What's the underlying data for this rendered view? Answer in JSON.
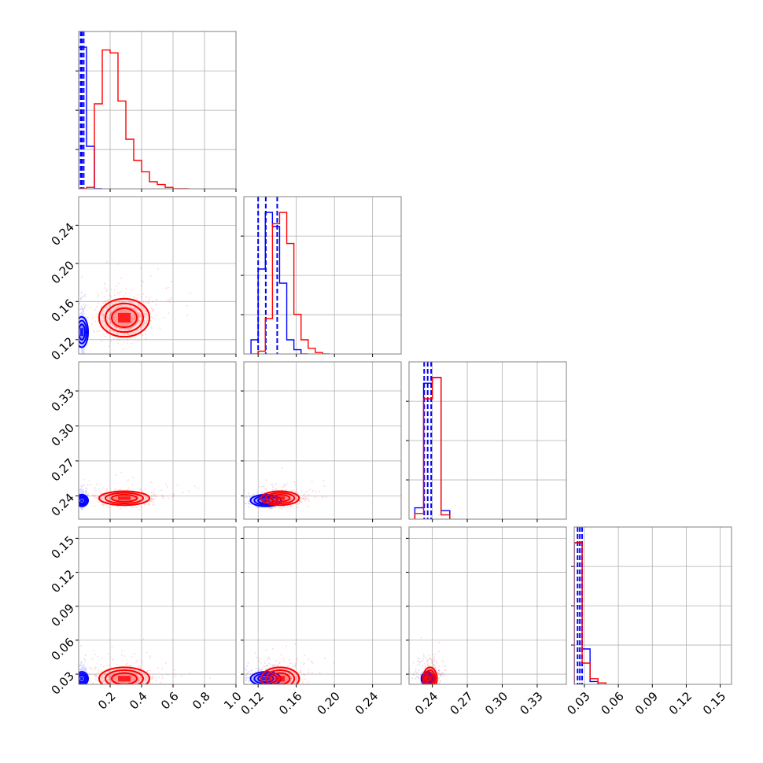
{
  "chart_data": {
    "type": "scatter",
    "title": "",
    "style": "corner plot (pairwise marginal histograms and 2D scatter/contours)",
    "grid": true,
    "legend": "none",
    "colors": {
      "series_a": "#0000ff",
      "series_b": "#ff0000"
    },
    "parameters": [
      {
        "index": 0,
        "label": "",
        "range": [
          0.0,
          1.0
        ],
        "ticks": [
          0.2,
          0.4,
          0.6,
          0.8,
          1.0
        ],
        "tick_labels": [
          "0.2",
          "0.4",
          "0.6",
          "0.8",
          "1.0"
        ]
      },
      {
        "index": 1,
        "label": "",
        "range": [
          0.105,
          0.27
        ],
        "ticks": [
          0.12,
          0.16,
          0.2,
          0.24
        ],
        "tick_labels": [
          "0.12",
          "0.16",
          "0.20",
          "0.24"
        ]
      },
      {
        "index": 2,
        "label": "",
        "range": [
          0.22,
          0.355
        ],
        "ticks": [
          0.24,
          0.27,
          0.3,
          0.33
        ],
        "tick_labels": [
          "0.24",
          "0.27",
          "0.30",
          "0.33"
        ]
      },
      {
        "index": 3,
        "label": "",
        "range": [
          0.021,
          0.16
        ],
        "ticks": [
          0.03,
          0.06,
          0.09,
          0.12,
          0.15
        ],
        "tick_labels": [
          "0.03",
          "0.06",
          "0.09",
          "0.12",
          "0.15"
        ]
      }
    ],
    "series": [
      {
        "color": "#0000ff",
        "means": [
          0.02,
          0.128,
          0.236,
          0.026
        ],
        "sds": [
          0.006,
          0.008,
          0.0025,
          0.003
        ],
        "quantiles": [
          [
            0.013,
            0.02,
            0.032
          ],
          [
            0.12,
            0.128,
            0.14
          ],
          [
            0.233,
            0.236,
            0.239
          ],
          [
            0.024,
            0.026,
            0.028
          ]
        ],
        "histograms": [
          {
            "edges": [
              0.0,
              0.05,
              0.1,
              0.15
            ],
            "counts": [
              1.0,
              0.3,
              0.0
            ]
          },
          {
            "edges": [
              0.1125,
              0.12,
              0.1275,
              0.135,
              0.1425,
              0.15,
              0.1575,
              0.165,
              0.1725
            ],
            "counts": [
              0.1,
              0.6,
              1.0,
              0.9,
              0.5,
              0.1,
              0.03,
              0.0
            ]
          },
          {
            "edges": [
              0.225,
              0.2325,
              0.24,
              0.2475,
              0.255
            ],
            "counts": [
              0.08,
              0.96,
              1.0,
              0.06
            ]
          },
          {
            "edges": [
              0.021,
              0.028,
              0.035,
              0.042
            ],
            "counts": [
              1.0,
              0.25,
              0.02
            ]
          }
        ]
      },
      {
        "color": "#ff0000",
        "means": [
          0.29,
          0.143,
          0.238,
          0.026
        ],
        "sds": [
          0.08,
          0.01,
          0.003,
          0.005
        ],
        "quantiles": [],
        "histograms": [
          {
            "edges": [
              0.0,
              0.05,
              0.1,
              0.15,
              0.2,
              0.25,
              0.3,
              0.35,
              0.4,
              0.45,
              0.5,
              0.55,
              0.6,
              0.65,
              0.7
            ],
            "counts": [
              0.0,
              0.01,
              0.6,
              0.98,
              0.96,
              0.62,
              0.35,
              0.2,
              0.12,
              0.05,
              0.03,
              0.01,
              0.0,
              0.0
            ]
          },
          {
            "edges": [
              0.1125,
              0.12,
              0.1275,
              0.135,
              0.1425,
              0.15,
              0.1575,
              0.165,
              0.1725,
              0.18,
              0.1875,
              0.195
            ],
            "counts": [
              0.0,
              0.02,
              0.25,
              0.92,
              1.0,
              0.78,
              0.28,
              0.1,
              0.04,
              0.01,
              0.0
            ]
          },
          {
            "edges": [
              0.225,
              0.2325,
              0.24,
              0.2475,
              0.255
            ],
            "counts": [
              0.04,
              0.85,
              1.0,
              0.03
            ]
          },
          {
            "edges": [
              0.021,
              0.028,
              0.035,
              0.042,
              0.049
            ],
            "counts": [
              1.0,
              0.15,
              0.04,
              0.01
            ]
          }
        ]
      }
    ]
  }
}
